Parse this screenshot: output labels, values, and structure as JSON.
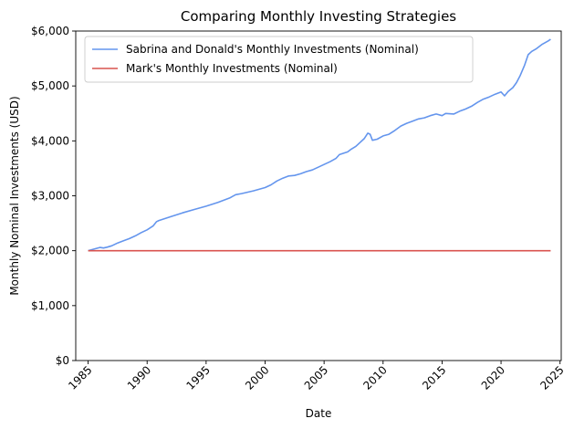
{
  "chart_data": {
    "type": "line",
    "title": "Comparing Monthly Investing Strategies",
    "xlabel": "Date",
    "ylabel": "Monthly Nominal Investments (USD)",
    "xlim": [
      1983.95,
      2025.1
    ],
    "ylim": [
      0,
      6000
    ],
    "x_ticks": [
      1985,
      1990,
      1995,
      2000,
      2005,
      2010,
      2015,
      2020,
      2025
    ],
    "x_tick_labels": [
      "1985",
      "1990",
      "1995",
      "2000",
      "2005",
      "2010",
      "2015",
      "2020",
      "2025"
    ],
    "y_ticks": [
      0,
      1000,
      2000,
      3000,
      4000,
      5000,
      6000
    ],
    "y_tick_labels": [
      "$0",
      "$1,000",
      "$2,000",
      "$3,000",
      "$4,000",
      "$5,000",
      "$6,000"
    ],
    "grid": false,
    "legend_position": "upper-left",
    "series": [
      {
        "name": "Sabrina and Donald's Monthly Investments (Nominal)",
        "color": "#6495ED",
        "points": [
          [
            1985.0,
            2000
          ],
          [
            1985.5,
            2030
          ],
          [
            1986.0,
            2060
          ],
          [
            1986.3,
            2050
          ],
          [
            1986.6,
            2065
          ],
          [
            1987.0,
            2090
          ],
          [
            1987.5,
            2140
          ],
          [
            1988.0,
            2180
          ],
          [
            1988.5,
            2220
          ],
          [
            1989.0,
            2270
          ],
          [
            1989.5,
            2330
          ],
          [
            1990.0,
            2380
          ],
          [
            1990.5,
            2450
          ],
          [
            1990.8,
            2530
          ],
          [
            1991.0,
            2550
          ],
          [
            1992.0,
            2620
          ],
          [
            1993.0,
            2690
          ],
          [
            1994.0,
            2750
          ],
          [
            1995.0,
            2810
          ],
          [
            1996.0,
            2880
          ],
          [
            1997.0,
            2960
          ],
          [
            1997.5,
            3020
          ],
          [
            1998.0,
            3040
          ],
          [
            1999.0,
            3090
          ],
          [
            2000.0,
            3150
          ],
          [
            2000.5,
            3200
          ],
          [
            2001.0,
            3270
          ],
          [
            2001.5,
            3320
          ],
          [
            2002.0,
            3360
          ],
          [
            2002.5,
            3370
          ],
          [
            2003.0,
            3400
          ],
          [
            2003.5,
            3440
          ],
          [
            2004.0,
            3470
          ],
          [
            2004.5,
            3520
          ],
          [
            2005.0,
            3570
          ],
          [
            2005.5,
            3620
          ],
          [
            2006.0,
            3680
          ],
          [
            2006.3,
            3750
          ],
          [
            2007.0,
            3800
          ],
          [
            2007.3,
            3850
          ],
          [
            2007.7,
            3900
          ],
          [
            2008.0,
            3960
          ],
          [
            2008.4,
            4040
          ],
          [
            2008.7,
            4140
          ],
          [
            2008.9,
            4120
          ],
          [
            2009.1,
            4010
          ],
          [
            2009.5,
            4030
          ],
          [
            2010.0,
            4090
          ],
          [
            2010.5,
            4120
          ],
          [
            2011.0,
            4190
          ],
          [
            2011.5,
            4270
          ],
          [
            2012.0,
            4320
          ],
          [
            2012.5,
            4360
          ],
          [
            2013.0,
            4400
          ],
          [
            2013.5,
            4420
          ],
          [
            2014.0,
            4460
          ],
          [
            2014.5,
            4490
          ],
          [
            2015.0,
            4460
          ],
          [
            2015.3,
            4500
          ],
          [
            2016.0,
            4490
          ],
          [
            2016.5,
            4540
          ],
          [
            2017.0,
            4580
          ],
          [
            2017.5,
            4630
          ],
          [
            2018.0,
            4700
          ],
          [
            2018.5,
            4760
          ],
          [
            2019.0,
            4800
          ],
          [
            2019.5,
            4850
          ],
          [
            2020.0,
            4890
          ],
          [
            2020.3,
            4820
          ],
          [
            2020.6,
            4900
          ],
          [
            2021.0,
            4970
          ],
          [
            2021.3,
            5060
          ],
          [
            2021.6,
            5180
          ],
          [
            2022.0,
            5380
          ],
          [
            2022.3,
            5570
          ],
          [
            2022.6,
            5630
          ],
          [
            2023.0,
            5680
          ],
          [
            2023.5,
            5760
          ],
          [
            2024.0,
            5820
          ],
          [
            2024.2,
            5850
          ]
        ]
      },
      {
        "name": "Mark's Monthly Investments (Nominal)",
        "color": "#D9534F",
        "points": [
          [
            1985.0,
            2000
          ],
          [
            2024.2,
            2000
          ]
        ]
      }
    ]
  }
}
